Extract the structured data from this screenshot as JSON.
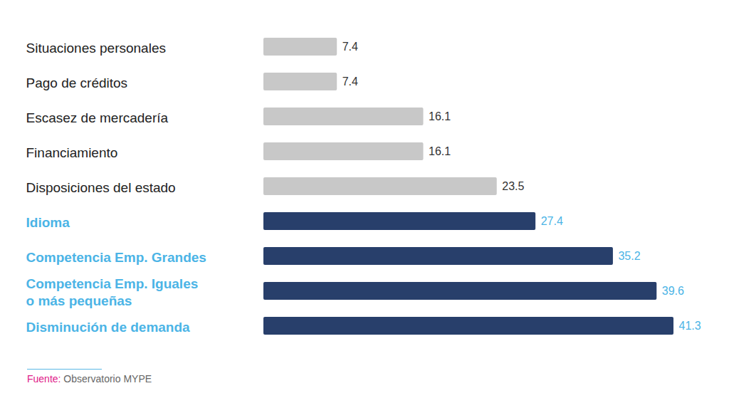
{
  "chart_data": {
    "type": "bar",
    "orientation": "horizontal",
    "categories": [
      "Situaciones personales",
      "Pago de créditos",
      "Escasez de mercadería",
      "Financiamiento",
      "Disposiciones del estado",
      "Idioma",
      "Competencia Emp. Grandes",
      "Competencia Emp. Iguales\no más pequeñas",
      "Disminución de demanda"
    ],
    "values": [
      7.4,
      7.4,
      16.1,
      16.1,
      23.5,
      27.4,
      35.2,
      39.6,
      41.3
    ],
    "colors": [
      "#c8c8c8",
      "#c8c8c8",
      "#c8c8c8",
      "#c8c8c8",
      "#c8c8c8",
      "#283f6b",
      "#283f6b",
      "#283f6b",
      "#283f6b"
    ],
    "xlim": [
      0,
      41.3
    ],
    "xticks": [],
    "grid": false,
    "data_labels": true,
    "tick_labels": "y",
    "source_label": "Fuente:",
    "source": "Observatorio MYPE"
  }
}
